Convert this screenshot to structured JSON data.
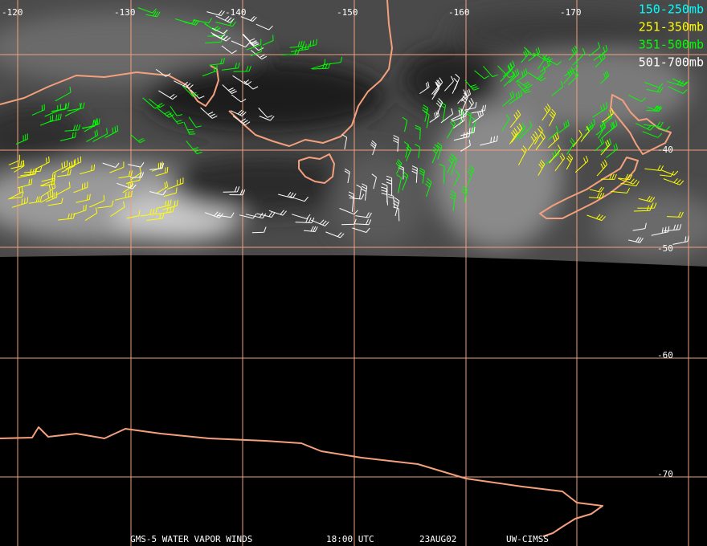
{
  "map": {
    "longitude_labels": [
      "-120",
      "-130",
      "-140",
      "-150",
      "-160",
      "-170"
    ],
    "latitude_labels": [
      "-40",
      "-50",
      "-60",
      "-70"
    ],
    "legend": [
      {
        "label": "150-250mb",
        "color": "#00ffff"
      },
      {
        "label": "251-350mb",
        "color": "#ffff00"
      },
      {
        "label": "351-500mb",
        "color": "#00ff00"
      },
      {
        "label": "501-700mb",
        "color": "#ffffff"
      }
    ],
    "footer": [
      "GMS-5 WATER VAPOR WINDS",
      "18:00 UTC",
      "23AUG02",
      "UW-CIMSS"
    ]
  }
}
